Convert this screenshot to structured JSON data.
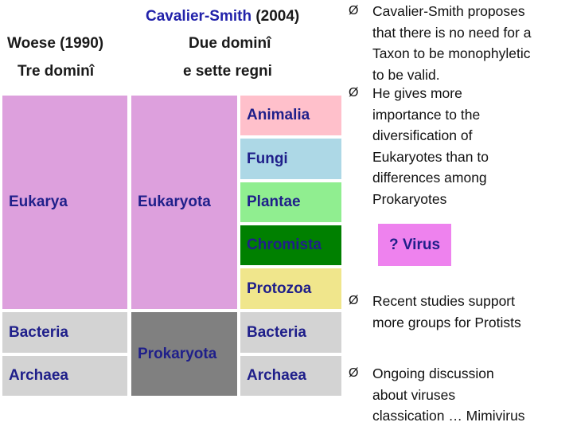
{
  "header": {
    "cs_title": "Cavalier-Smith",
    "cs_year": "(2004)",
    "woese_title": "Woese (1990)",
    "due_domini": "Due dominî",
    "tre_domini": "Tre dominî",
    "sette_regni": "e sette regni"
  },
  "woese_column": {
    "eukarya": "Eukarya",
    "bacteria": "Bacteria",
    "archaea": "Archaea"
  },
  "domain_column": {
    "eukaryota": "Eukaryota",
    "prokaryota": "Prokaryota"
  },
  "kingdom_column": {
    "animalia": "Animalia",
    "fungi": "Fungi",
    "plantae": "Plantae",
    "chromista": "Chromista",
    "protozoa": "Protozoa",
    "bacteria": "Bacteria",
    "archaea": "Archaea"
  },
  "virus_label": "? Virus",
  "bullets": [
    {
      "lines": [
        "Cavalier-Smith proposes",
        "that there is no need for a",
        "Taxon to be monophyletic",
        "to be valid."
      ]
    },
    {
      "lines": [
        "He gives more",
        "importance to the",
        "diversification of",
        "Eukaryotes than to",
        "differences among",
        "Prokaryotes"
      ]
    },
    {
      "lines": [
        "Recent studies support",
        "more groups for Protists"
      ]
    },
    {
      "lines": [
        "Ongoing discussion",
        "about viruses",
        "classication … Mimivirus"
      ]
    }
  ],
  "bullet_mark": "Ø",
  "colors": {
    "eukarya": "#dda0dd",
    "prokaryote_gray": "#d3d3d3",
    "prokaryota_dark": "#808080",
    "animalia": "#ffc0cb",
    "fungi": "#add8e6",
    "plantae": "#90ee90",
    "chromista": "#008000",
    "protozoa": "#f0e68c",
    "virus": "#ee82ee",
    "navy_text": "#1f1f8a"
  }
}
